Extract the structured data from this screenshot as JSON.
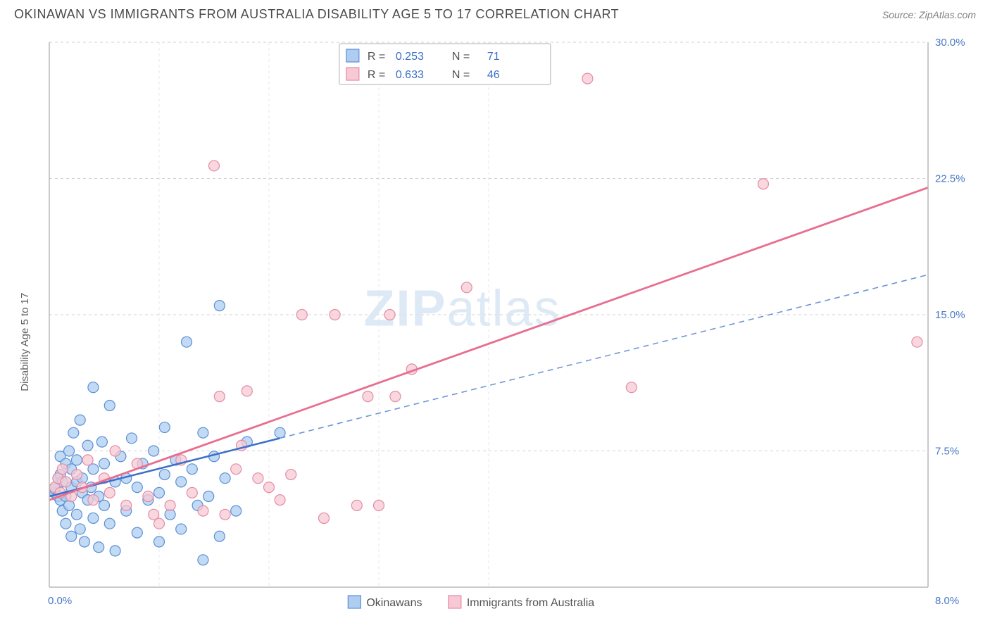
{
  "title": "OKINAWAN VS IMMIGRANTS FROM AUSTRALIA DISABILITY AGE 5 TO 17 CORRELATION CHART",
  "source": "Source: ZipAtlas.com",
  "watermark": {
    "bold": "ZIP",
    "rest": "atlas"
  },
  "ylabel": "Disability Age 5 to 17",
  "chart": {
    "type": "scatter",
    "background_color": "#ffffff",
    "grid_color": "#d0d0d0",
    "axis_color": "#b8b8b8",
    "xlim": [
      0.0,
      8.0
    ],
    "ylim": [
      0.0,
      30.0
    ],
    "x_ticks": [
      0.0,
      8.0
    ],
    "x_tick_labels": [
      "0.0%",
      "8.0%"
    ],
    "y_ticks": [
      7.5,
      15.0,
      22.5,
      30.0
    ],
    "y_tick_labels": [
      "7.5%",
      "15.0%",
      "22.5%",
      "30.0%"
    ],
    "marker_radius": 7.5,
    "series": [
      {
        "name": "Okinawans",
        "color_fill": "#aecdf0",
        "color_stroke": "#5a8fd6",
        "R": "0.253",
        "N": "71",
        "trend": {
          "style": "solid-then-dash",
          "color": "#3d6fc9",
          "x0": 0.0,
          "y0": 5.0,
          "x1": 8.0,
          "y1": 17.2,
          "solid_until_x": 2.1
        },
        "points": [
          [
            0.05,
            5.2
          ],
          [
            0.05,
            5.4
          ],
          [
            0.08,
            6.0
          ],
          [
            0.08,
            5.0
          ],
          [
            0.1,
            4.8
          ],
          [
            0.1,
            6.2
          ],
          [
            0.1,
            7.2
          ],
          [
            0.12,
            4.2
          ],
          [
            0.12,
            5.8
          ],
          [
            0.15,
            5.0
          ],
          [
            0.15,
            6.8
          ],
          [
            0.15,
            3.5
          ],
          [
            0.18,
            4.5
          ],
          [
            0.18,
            7.5
          ],
          [
            0.2,
            5.5
          ],
          [
            0.2,
            2.8
          ],
          [
            0.2,
            6.5
          ],
          [
            0.22,
            8.5
          ],
          [
            0.25,
            4.0
          ],
          [
            0.25,
            5.8
          ],
          [
            0.25,
            7.0
          ],
          [
            0.28,
            3.2
          ],
          [
            0.28,
            9.2
          ],
          [
            0.3,
            5.2
          ],
          [
            0.3,
            6.0
          ],
          [
            0.32,
            2.5
          ],
          [
            0.35,
            4.8
          ],
          [
            0.35,
            7.8
          ],
          [
            0.38,
            5.5
          ],
          [
            0.4,
            3.8
          ],
          [
            0.4,
            6.5
          ],
          [
            0.4,
            11.0
          ],
          [
            0.45,
            2.2
          ],
          [
            0.45,
            5.0
          ],
          [
            0.48,
            8.0
          ],
          [
            0.5,
            4.5
          ],
          [
            0.5,
            6.8
          ],
          [
            0.55,
            3.5
          ],
          [
            0.55,
            10.0
          ],
          [
            0.6,
            5.8
          ],
          [
            0.6,
            2.0
          ],
          [
            0.65,
            7.2
          ],
          [
            0.7,
            4.2
          ],
          [
            0.7,
            6.0
          ],
          [
            0.75,
            8.2
          ],
          [
            0.8,
            3.0
          ],
          [
            0.8,
            5.5
          ],
          [
            0.85,
            6.8
          ],
          [
            0.9,
            4.8
          ],
          [
            0.95,
            7.5
          ],
          [
            1.0,
            2.5
          ],
          [
            1.0,
            5.2
          ],
          [
            1.05,
            6.2
          ],
          [
            1.05,
            8.8
          ],
          [
            1.1,
            4.0
          ],
          [
            1.15,
            7.0
          ],
          [
            1.2,
            5.8
          ],
          [
            1.2,
            3.2
          ],
          [
            1.25,
            13.5
          ],
          [
            1.3,
            6.5
          ],
          [
            1.35,
            4.5
          ],
          [
            1.4,
            8.5
          ],
          [
            1.4,
            1.5
          ],
          [
            1.45,
            5.0
          ],
          [
            1.5,
            7.2
          ],
          [
            1.55,
            2.8
          ],
          [
            1.55,
            15.5
          ],
          [
            1.6,
            6.0
          ],
          [
            1.7,
            4.2
          ],
          [
            1.8,
            8.0
          ],
          [
            2.1,
            8.5
          ]
        ]
      },
      {
        "name": "Immigrants from Australia",
        "color_fill": "#f6c9d4",
        "color_stroke": "#e68aa4",
        "R": "0.633",
        "N": "46",
        "trend": {
          "style": "solid",
          "color": "#e86e8f",
          "x0": 0.0,
          "y0": 4.8,
          "x1": 8.0,
          "y1": 22.0
        },
        "points": [
          [
            0.05,
            5.5
          ],
          [
            0.08,
            6.0
          ],
          [
            0.1,
            5.2
          ],
          [
            0.12,
            6.5
          ],
          [
            0.15,
            5.8
          ],
          [
            0.2,
            5.0
          ],
          [
            0.25,
            6.2
          ],
          [
            0.3,
            5.5
          ],
          [
            0.35,
            7.0
          ],
          [
            0.4,
            4.8
          ],
          [
            0.5,
            6.0
          ],
          [
            0.55,
            5.2
          ],
          [
            0.6,
            7.5
          ],
          [
            0.7,
            4.5
          ],
          [
            0.8,
            6.8
          ],
          [
            0.9,
            5.0
          ],
          [
            1.0,
            3.5
          ],
          [
            1.1,
            4.5
          ],
          [
            1.2,
            7.0
          ],
          [
            1.3,
            5.2
          ],
          [
            1.4,
            4.2
          ],
          [
            1.5,
            23.2
          ],
          [
            1.55,
            10.5
          ],
          [
            1.6,
            4.0
          ],
          [
            1.7,
            6.5
          ],
          [
            1.8,
            10.8
          ],
          [
            1.9,
            6.0
          ],
          [
            2.0,
            5.5
          ],
          [
            2.1,
            4.8
          ],
          [
            2.2,
            6.2
          ],
          [
            2.3,
            15.0
          ],
          [
            2.5,
            3.8
          ],
          [
            2.6,
            15.0
          ],
          [
            2.8,
            4.5
          ],
          [
            2.9,
            10.5
          ],
          [
            3.0,
            4.5
          ],
          [
            3.1,
            15.0
          ],
          [
            3.15,
            10.5
          ],
          [
            3.3,
            12.0
          ],
          [
            3.8,
            16.5
          ],
          [
            4.9,
            28.0
          ],
          [
            5.3,
            11.0
          ],
          [
            6.5,
            22.2
          ],
          [
            7.9,
            13.5
          ],
          [
            0.95,
            4.0
          ],
          [
            1.75,
            7.8
          ]
        ]
      }
    ],
    "top_legend": {
      "rows": [
        {
          "swatch": "blue",
          "r_label": "R =",
          "r_val": "0.253",
          "n_label": "N =",
          "n_val": "71"
        },
        {
          "swatch": "pink",
          "r_label": "R =",
          "r_val": "0.633",
          "n_label": "N =",
          "n_val": "46"
        }
      ]
    },
    "bottom_legend": [
      {
        "swatch": "blue",
        "label": "Okinawans"
      },
      {
        "swatch": "pink",
        "label": "Immigrants from Australia"
      }
    ]
  }
}
